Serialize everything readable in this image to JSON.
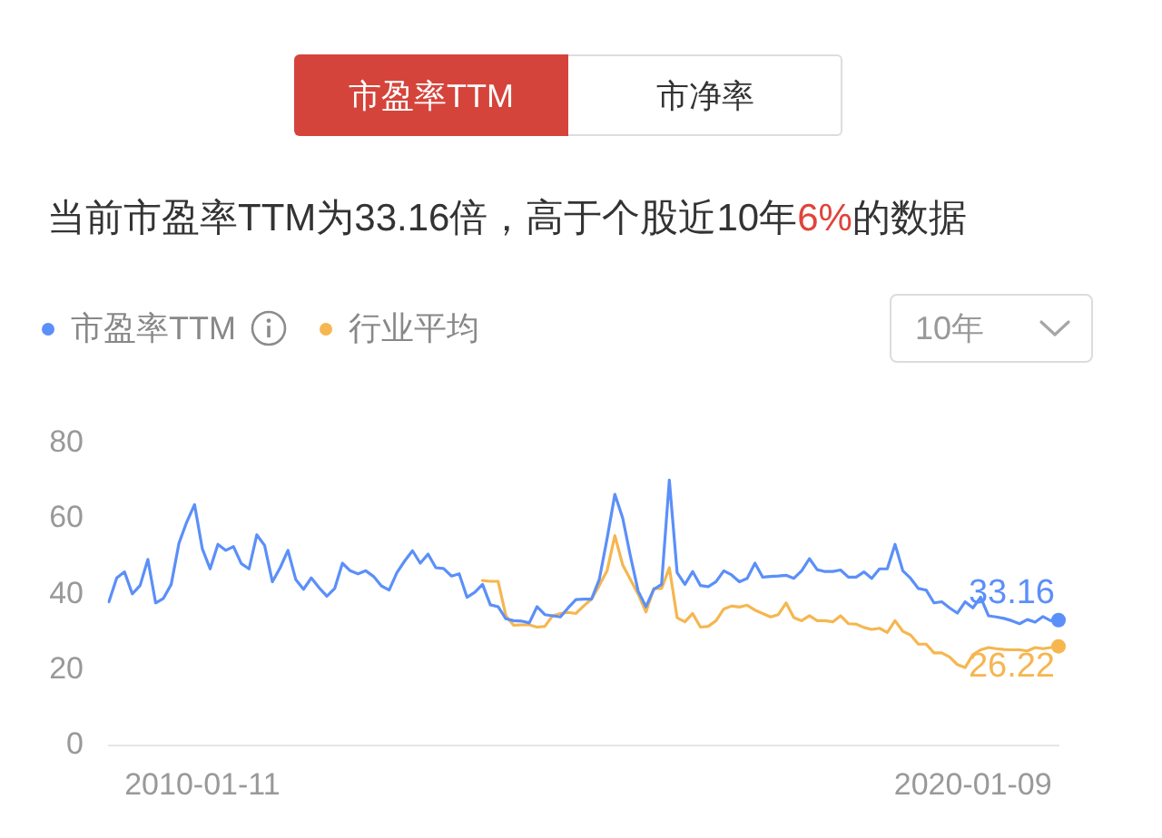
{
  "chart_data": {
    "type": "line",
    "title": "当前市盈率TTM为33.16倍，高于个股近10年6%的数据",
    "annotations": [
      "市盈率TTM",
      "市净率",
      "10年"
    ],
    "categories": [
      null,
      null,
      null,
      null,
      null,
      null,
      null,
      null,
      null,
      null,
      null,
      null,
      "2010-01-11",
      null,
      null,
      null,
      null,
      null,
      null,
      null,
      null,
      null,
      null,
      null,
      null,
      null,
      null,
      null,
      null,
      null,
      null,
      null,
      null,
      null,
      null,
      null,
      null,
      null,
      null,
      null,
      null,
      null,
      null,
      null,
      null,
      null,
      null,
      null,
      null,
      null,
      null,
      null,
      null,
      null,
      null,
      null,
      null,
      null,
      null,
      null,
      null,
      null,
      null,
      null,
      null,
      null,
      null,
      null,
      null,
      null,
      null,
      null,
      null,
      null,
      null,
      null,
      null,
      null,
      null,
      null,
      null,
      null,
      null,
      null,
      null,
      null,
      null,
      null,
      null,
      null,
      null,
      null,
      null,
      null,
      null,
      null,
      null,
      null,
      null,
      null,
      null,
      null,
      null,
      null,
      null,
      null,
      null,
      null,
      null,
      null,
      null,
      "2020-01-09",
      null,
      null,
      null,
      null,
      null,
      null,
      null,
      null,
      null,
      null,
      null
    ],
    "series": [
      {
        "name": "市盈率TTM",
        "color": "#5b8ff9",
        "values": [
          38.0,
          44.3,
          45.9,
          40.1,
          42.3,
          49.2,
          37.7,
          38.9,
          42.6,
          53.5,
          59.1,
          63.7,
          52.0,
          46.7,
          53.2,
          51.6,
          52.6,
          48.1,
          46.7,
          55.7,
          52.9,
          43.3,
          47.0,
          51.6,
          43.9,
          41.3,
          44.3,
          41.7,
          39.5,
          41.5,
          48.2,
          46.2,
          45.4,
          46.2,
          44.7,
          42.2,
          41.1,
          45.7,
          48.8,
          51.5,
          48.2,
          50.6,
          47.0,
          46.8,
          44.8,
          45.4,
          39.2,
          40.5,
          42.6,
          37.2,
          36.7,
          33.5,
          33.0,
          32.9,
          32.4,
          36.7,
          34.6,
          34.3,
          34.0,
          36.4,
          38.6,
          38.7,
          38.7,
          43.9,
          54.7,
          66.4,
          60.2,
          50.1,
          40.8,
          36.7,
          41.3,
          42.6,
          70.2,
          45.7,
          42.6,
          46.0,
          42.3,
          42.0,
          43.3,
          46.2,
          45.1,
          43.3,
          44.2,
          48.2,
          44.5,
          44.7,
          44.8,
          45.0,
          44.2,
          46.2,
          49.4,
          46.5,
          46.0,
          46.0,
          46.4,
          44.5,
          44.5,
          45.9,
          44.2,
          46.7,
          46.7,
          53.2,
          46.2,
          44.2,
          41.5,
          41.1,
          37.7,
          38.0,
          36.4,
          35.0,
          38.0,
          36.4,
          39.2,
          34.3,
          34.0,
          33.6,
          33.0,
          32.2,
          33.3,
          32.6,
          34.1,
          33.0,
          33.2
        ]
      },
      {
        "name": "行业平均",
        "color": "#f6b650",
        "values": [
          null,
          null,
          null,
          null,
          null,
          null,
          null,
          null,
          null,
          null,
          null,
          null,
          null,
          null,
          null,
          null,
          null,
          null,
          null,
          null,
          null,
          null,
          null,
          null,
          null,
          null,
          null,
          null,
          null,
          null,
          null,
          null,
          null,
          null,
          null,
          null,
          null,
          null,
          null,
          null,
          null,
          null,
          null,
          null,
          null,
          null,
          null,
          null,
          43.6,
          43.4,
          43.4,
          34.3,
          31.8,
          31.9,
          31.9,
          31.3,
          31.5,
          34.3,
          34.9,
          35.2,
          34.9,
          36.9,
          38.7,
          42.3,
          46.2,
          55.5,
          47.8,
          43.9,
          40.0,
          35.3,
          41.5,
          41.5,
          47.0,
          33.8,
          32.7,
          34.9,
          31.3,
          31.5,
          33.0,
          36.1,
          36.9,
          36.6,
          37.1,
          35.8,
          34.9,
          34.0,
          34.6,
          37.7,
          33.8,
          33.0,
          34.3,
          33.0,
          33.0,
          32.7,
          34.3,
          32.2,
          32.1,
          31.2,
          30.7,
          31.0,
          29.9,
          33.0,
          30.2,
          29.2,
          26.8,
          26.8,
          24.5,
          24.5,
          23.4,
          21.4,
          20.6,
          24.0,
          25.3,
          25.9,
          25.6,
          25.4,
          25.3,
          25.3,
          25.0,
          25.9,
          25.6,
          25.9,
          26.2
        ]
      },
      {
        "type": "scatter",
        "color": "#5b8ff9",
        "marker": "circle",
        "values": [
          null,
          null,
          null,
          null,
          null,
          null,
          null,
          null,
          null,
          null,
          null,
          null,
          null,
          null,
          null,
          null,
          null,
          null,
          null,
          null,
          null,
          null,
          null,
          null,
          null,
          null,
          null,
          null,
          null,
          null,
          null,
          null,
          null,
          null,
          null,
          null,
          null,
          null,
          null,
          null,
          null,
          null,
          null,
          null,
          null,
          null,
          null,
          null,
          null,
          null,
          null,
          null,
          null,
          null,
          null,
          null,
          null,
          null,
          null,
          null,
          null,
          null,
          null,
          null,
          null,
          null,
          null,
          null,
          null,
          null,
          null,
          null,
          null,
          null,
          null,
          null,
          null,
          null,
          null,
          null,
          null,
          null,
          null,
          null,
          null,
          null,
          null,
          null,
          null,
          null,
          null,
          null,
          null,
          null,
          null,
          null,
          null,
          null,
          null,
          null,
          null,
          null,
          null,
          null,
          null,
          null,
          null,
          null,
          null,
          null,
          null,
          null,
          null,
          null,
          null,
          null,
          null,
          null,
          null,
          null,
          null,
          null,
          33.16
        ],
        "value_labels": [
          null,
          null,
          null,
          null,
          null,
          null,
          null,
          null,
          null,
          null,
          null,
          null,
          null,
          null,
          null,
          null,
          null,
          null,
          null,
          null,
          null,
          null,
          null,
          null,
          null,
          null,
          null,
          null,
          null,
          null,
          null,
          null,
          null,
          null,
          null,
          null,
          null,
          null,
          null,
          null,
          null,
          null,
          null,
          null,
          null,
          null,
          null,
          null,
          null,
          null,
          null,
          null,
          null,
          null,
          null,
          null,
          null,
          null,
          null,
          null,
          null,
          null,
          null,
          null,
          null,
          null,
          null,
          null,
          null,
          null,
          null,
          null,
          null,
          null,
          null,
          null,
          null,
          null,
          null,
          null,
          null,
          null,
          null,
          null,
          null,
          null,
          null,
          null,
          null,
          null,
          null,
          null,
          null,
          null,
          null,
          null,
          null,
          null,
          null,
          null,
          null,
          null,
          null,
          null,
          null,
          null,
          null,
          null,
          null,
          null,
          null,
          null,
          null,
          null,
          null,
          null,
          null,
          null,
          null,
          null,
          null,
          null,
          "33.16"
        ]
      },
      {
        "type": "scatter",
        "color": "#f6b650",
        "marker": "circle",
        "values": [
          null,
          null,
          null,
          null,
          null,
          null,
          null,
          null,
          null,
          null,
          null,
          null,
          null,
          null,
          null,
          null,
          null,
          null,
          null,
          null,
          null,
          null,
          null,
          null,
          null,
          null,
          null,
          null,
          null,
          null,
          null,
          null,
          null,
          null,
          null,
          null,
          null,
          null,
          null,
          null,
          null,
          null,
          null,
          null,
          null,
          null,
          null,
          null,
          null,
          null,
          null,
          null,
          null,
          null,
          null,
          null,
          null,
          null,
          null,
          null,
          null,
          null,
          null,
          null,
          null,
          null,
          null,
          null,
          null,
          null,
          null,
          null,
          null,
          null,
          null,
          null,
          null,
          null,
          null,
          null,
          null,
          null,
          null,
          null,
          null,
          null,
          null,
          null,
          null,
          null,
          null,
          null,
          null,
          null,
          null,
          null,
          null,
          null,
          null,
          null,
          null,
          null,
          null,
          null,
          null,
          null,
          null,
          null,
          null,
          null,
          null,
          null,
          null,
          null,
          null,
          null,
          null,
          null,
          null,
          null,
          null,
          null,
          26.22
        ],
        "value_labels": [
          null,
          null,
          null,
          null,
          null,
          null,
          null,
          null,
          null,
          null,
          null,
          null,
          null,
          null,
          null,
          null,
          null,
          null,
          null,
          null,
          null,
          null,
          null,
          null,
          null,
          null,
          null,
          null,
          null,
          null,
          null,
          null,
          null,
          null,
          null,
          null,
          null,
          null,
          null,
          null,
          null,
          null,
          null,
          null,
          null,
          null,
          null,
          null,
          null,
          null,
          null,
          null,
          null,
          null,
          null,
          null,
          null,
          null,
          null,
          null,
          null,
          null,
          null,
          null,
          null,
          null,
          null,
          null,
          null,
          null,
          null,
          null,
          null,
          null,
          null,
          null,
          null,
          null,
          null,
          null,
          null,
          null,
          null,
          null,
          null,
          null,
          null,
          null,
          null,
          null,
          null,
          null,
          null,
          null,
          null,
          null,
          null,
          null,
          null,
          null,
          null,
          null,
          null,
          null,
          null,
          null,
          null,
          null,
          null,
          null,
          null,
          null,
          null,
          null,
          null,
          null,
          null,
          null,
          null,
          null,
          null,
          null,
          "26.22"
        ]
      }
    ],
    "ylim": [
      0,
      80
    ],
    "yticks": [
      0,
      20,
      40,
      60,
      80
    ],
    "legend": "top left"
  }
}
